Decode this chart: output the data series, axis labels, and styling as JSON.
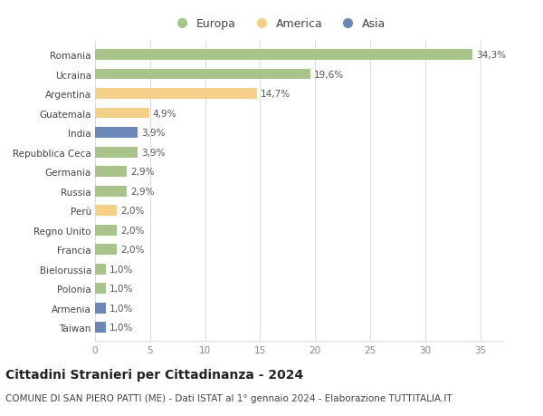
{
  "categories": [
    "Romania",
    "Ucraina",
    "Argentina",
    "Guatemala",
    "India",
    "Repubblica Ceca",
    "Germania",
    "Russia",
    "Perù",
    "Regno Unito",
    "Francia",
    "Bielorussia",
    "Polonia",
    "Armenia",
    "Taiwan"
  ],
  "values": [
    34.3,
    19.6,
    14.7,
    4.9,
    3.9,
    3.9,
    2.9,
    2.9,
    2.0,
    2.0,
    2.0,
    1.0,
    1.0,
    1.0,
    1.0
  ],
  "labels": [
    "34,3%",
    "19,6%",
    "14,7%",
    "4,9%",
    "3,9%",
    "3,9%",
    "2,9%",
    "2,9%",
    "2,0%",
    "2,0%",
    "2,0%",
    "1,0%",
    "1,0%",
    "1,0%",
    "1,0%"
  ],
  "colors": [
    "#a8c48a",
    "#a8c48a",
    "#f5d08a",
    "#f5d08a",
    "#6b87b8",
    "#a8c48a",
    "#a8c48a",
    "#a8c48a",
    "#f5d08a",
    "#a8c48a",
    "#a8c48a",
    "#a8c48a",
    "#a8c48a",
    "#6b87b8",
    "#6b87b8"
  ],
  "legend_labels": [
    "Europa",
    "America",
    "Asia"
  ],
  "legend_colors": [
    "#a8c48a",
    "#f5d08a",
    "#6b87b8"
  ],
  "xlim": [
    0,
    37
  ],
  "xticks": [
    0,
    5,
    10,
    15,
    20,
    25,
    30,
    35
  ],
  "title": "Cittadini Stranieri per Cittadinanza - 2024",
  "subtitle": "COMUNE DI SAN PIERO PATTI (ME) - Dati ISTAT al 1° gennaio 2024 - Elaborazione TUTTITALIA.IT",
  "bg_color": "#ffffff",
  "grid_color": "#dddddd",
  "bar_height": 0.55,
  "title_fontsize": 10,
  "subtitle_fontsize": 7.5,
  "label_fontsize": 7.5,
  "tick_fontsize": 7.5
}
